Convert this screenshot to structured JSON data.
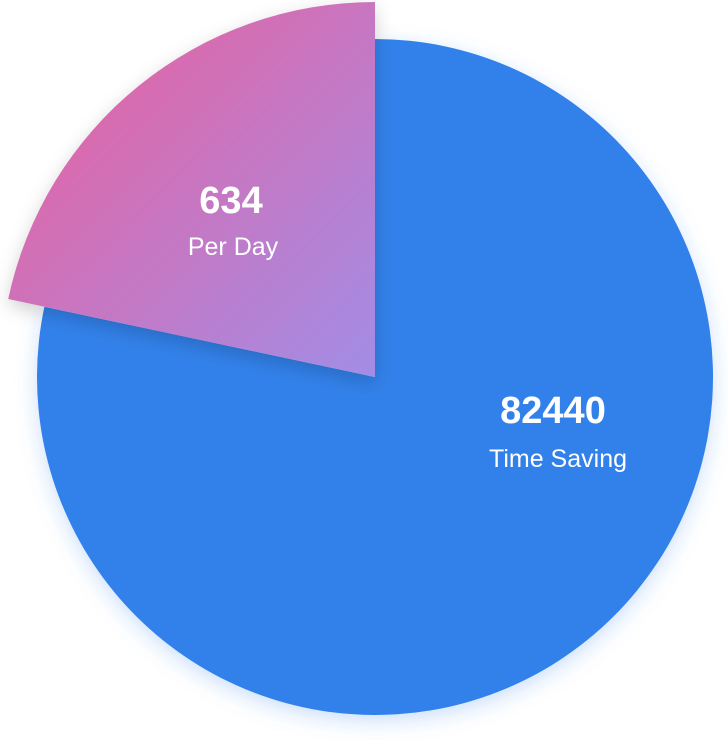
{
  "chart_data": {
    "type": "pie",
    "slices": [
      {
        "label": "Time Saving",
        "value": 82440,
        "value_text": "82440",
        "color": "#3181EA"
      },
      {
        "label": "Per Day",
        "value": 634,
        "value_text": "634",
        "gradient": [
          "#EE5E9A",
          "#A28DE6"
        ],
        "exploded": true
      }
    ]
  }
}
